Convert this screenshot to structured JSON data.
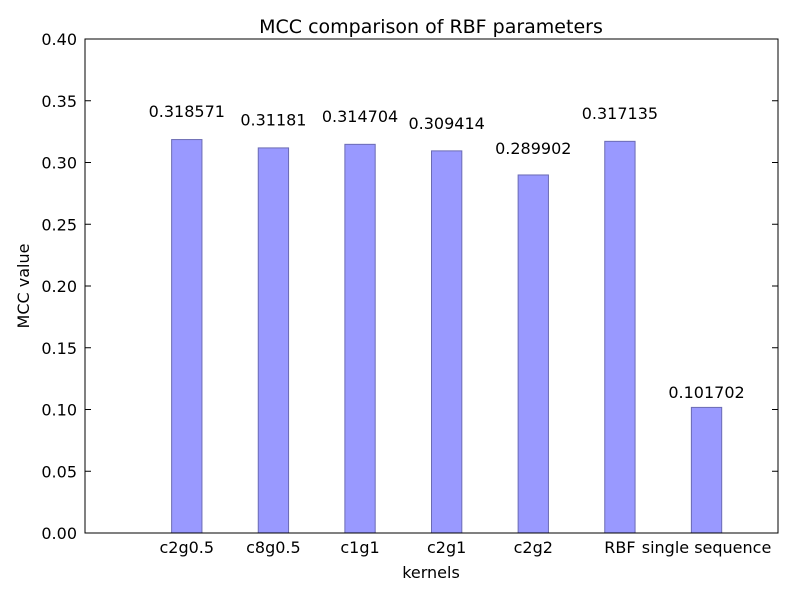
{
  "chart_data": {
    "type": "bar",
    "title": "MCC comparison of RBF parameters",
    "xlabel": "kernels",
    "ylabel": "MCC value",
    "categories": [
      "c2g0.5",
      "c8g0.5",
      "c1g1",
      "c2g1",
      "c2g2",
      "RBF",
      "single sequence"
    ],
    "values": [
      0.318571,
      0.31181,
      0.314704,
      0.309414,
      0.289902,
      0.317135,
      0.101702
    ],
    "color": "#9999ff",
    "ylim": [
      0,
      0.4
    ],
    "yticks": [
      {
        "value": 0,
        "label": "0.00"
      },
      0.05,
      {
        "value": 0.1,
        "label": "0.10"
      },
      0.15,
      {
        "value": 0.2,
        "label": "0.20"
      },
      0.25,
      {
        "value": 0.3,
        "label": "0.30"
      },
      0.35,
      {
        "value": 0.4,
        "label": "0.40"
      }
    ]
  }
}
